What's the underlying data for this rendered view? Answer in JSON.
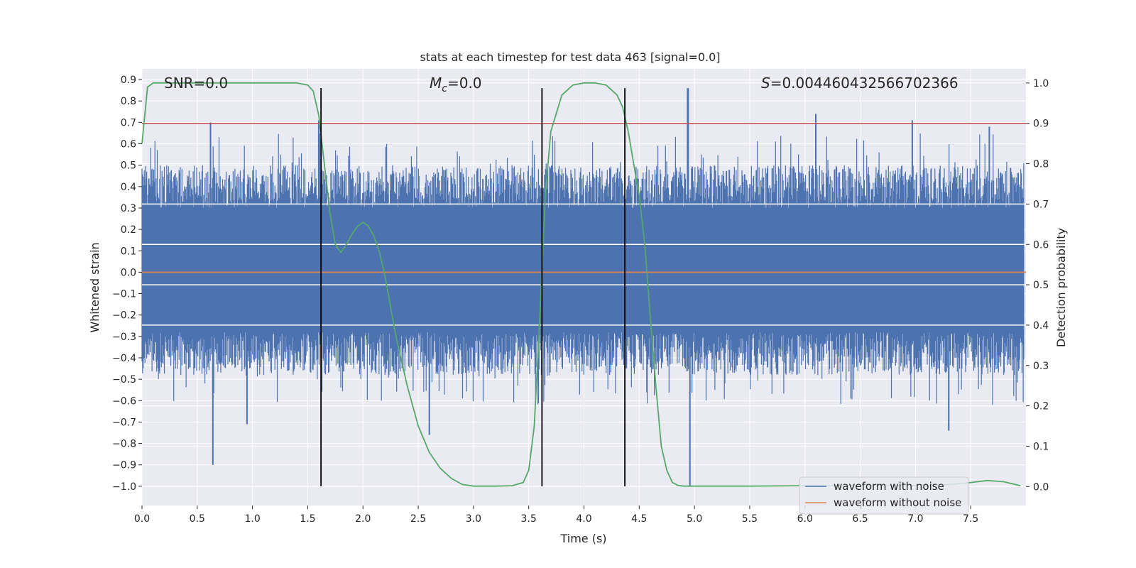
{
  "chart_data": {
    "type": "line",
    "title": "stats at each timestep for test data 463 [signal=0.0]",
    "xlabel": "Time (s)",
    "ylabel_left": "Whitened strain",
    "ylabel_right": "Detection probability",
    "xlim": [
      0.0,
      8.0
    ],
    "ylim_left": [
      -1.09,
      0.95
    ],
    "ylim_right": [
      -0.047,
      1.035
    ],
    "xticks": [
      0.0,
      0.5,
      1.0,
      1.5,
      2.0,
      2.5,
      3.0,
      3.5,
      4.0,
      4.5,
      5.0,
      5.5,
      6.0,
      6.5,
      7.0,
      7.5
    ],
    "xtick_labels": [
      "0.0",
      "0.5",
      "1.0",
      "1.5",
      "2.0",
      "2.5",
      "3.0",
      "3.5",
      "4.0",
      "4.5",
      "5.0",
      "5.5",
      "6.0",
      "6.5",
      "7.0",
      "7.5"
    ],
    "yticks_left": [
      0.9,
      0.8,
      0.7,
      0.6,
      0.5,
      0.4,
      0.3,
      0.2,
      0.1,
      0.0,
      -0.1,
      -0.2,
      -0.3,
      -0.4,
      -0.5,
      -0.6,
      -0.7,
      -0.8,
      -0.9,
      -1.0
    ],
    "ytick_labels_left": [
      "0.9",
      "0.8",
      "0.7",
      "0.6",
      "0.5",
      "0.4",
      "0.3",
      "0.2",
      "0.1",
      "0.0",
      "−0.1",
      "−0.2",
      "−0.3",
      "−0.4",
      "−0.5",
      "−0.6",
      "−0.7",
      "−0.8",
      "−0.9",
      "−1.0"
    ],
    "yticks_right": [
      1.0,
      0.9,
      0.8,
      0.7,
      0.6,
      0.5,
      0.4,
      0.3,
      0.2,
      0.1,
      0.0
    ],
    "ytick_labels_right": [
      "1.0",
      "0.9",
      "0.8",
      "0.7",
      "0.6",
      "0.5",
      "0.4",
      "0.3",
      "0.2",
      "0.1",
      "0.0"
    ],
    "annotations": {
      "snr": "SNR=0.0",
      "mc_symbol": "M",
      "mc_sub": "c",
      "mc_value": "=0.0",
      "s_symbol": "S",
      "s_value": "=0.004460432566702366"
    },
    "threshold": {
      "axis": "right",
      "value": 0.9,
      "color": "#c44e52"
    },
    "vertical_lines": {
      "x": [
        1.62,
        3.62,
        4.37
      ],
      "ymin": -1.0,
      "ymax": 0.86,
      "color": "#000000"
    },
    "noise_envelope": {
      "description": "dense noisy strain; approx bulk amplitude",
      "bulk_upper": 0.3,
      "bulk_lower": -0.28,
      "peaks": [
        {
          "x": 0.62,
          "y": 0.7
        },
        {
          "x": 0.64,
          "y": -0.9
        },
        {
          "x": 0.95,
          "y": -0.71
        },
        {
          "x": 1.6,
          "y": 0.71
        },
        {
          "x": 4.94,
          "y": 0.86
        },
        {
          "x": 4.96,
          "y": -1.0
        },
        {
          "x": 6.1,
          "y": 0.74
        },
        {
          "x": 6.97,
          "y": 0.71
        },
        {
          "x": 7.3,
          "y": -0.74
        },
        {
          "x": 7.67,
          "y": 0.68
        },
        {
          "x": 2.6,
          "y": -0.76
        }
      ]
    },
    "series": [
      {
        "name": "waveform with noise",
        "axis": "left",
        "color": "#4c72b0",
        "style": "noise"
      },
      {
        "name": "waveform without noise",
        "axis": "left",
        "color": "#dd8452",
        "x": [
          0.0,
          8.0
        ],
        "y": [
          0.0,
          0.0
        ]
      },
      {
        "name": "detection probability",
        "axis": "right",
        "color": "#55a868",
        "legend": false,
        "x": [
          0.0,
          0.05,
          0.1,
          0.2,
          0.4,
          0.6,
          0.8,
          1.0,
          1.2,
          1.4,
          1.5,
          1.55,
          1.6,
          1.65,
          1.7,
          1.75,
          1.8,
          1.85,
          1.9,
          1.95,
          2.0,
          2.05,
          2.1,
          2.15,
          2.2,
          2.3,
          2.4,
          2.5,
          2.6,
          2.7,
          2.8,
          2.9,
          3.0,
          3.2,
          3.35,
          3.45,
          3.5,
          3.55,
          3.6,
          3.65,
          3.7,
          3.8,
          3.9,
          4.0,
          4.1,
          4.2,
          4.3,
          4.35,
          4.4,
          4.45,
          4.5,
          4.55,
          4.6,
          4.65,
          4.7,
          4.75,
          4.8,
          4.85,
          4.9,
          5.0,
          5.5,
          6.0,
          6.5,
          7.0,
          7.3,
          7.5,
          7.65,
          7.8,
          7.95
        ],
        "y": [
          0.85,
          0.99,
          1.0,
          1.0,
          1.0,
          1.0,
          1.0,
          1.0,
          1.0,
          1.0,
          0.995,
          0.98,
          0.92,
          0.8,
          0.68,
          0.6,
          0.58,
          0.6,
          0.625,
          0.645,
          0.655,
          0.645,
          0.62,
          0.58,
          0.52,
          0.37,
          0.25,
          0.15,
          0.085,
          0.045,
          0.02,
          0.005,
          0.001,
          0.001,
          0.002,
          0.01,
          0.04,
          0.15,
          0.42,
          0.72,
          0.88,
          0.97,
          0.995,
          1.0,
          1.0,
          0.995,
          0.97,
          0.94,
          0.88,
          0.8,
          0.72,
          0.6,
          0.42,
          0.25,
          0.1,
          0.04,
          0.01,
          0.003,
          0.001,
          0.001,
          0.001,
          0.002,
          0.002,
          0.003,
          0.005,
          0.01,
          0.015,
          0.012,
          0.002
        ]
      }
    ],
    "legend": {
      "location": "lower-right",
      "entries": [
        "waveform with noise",
        "waveform without noise"
      ]
    }
  }
}
